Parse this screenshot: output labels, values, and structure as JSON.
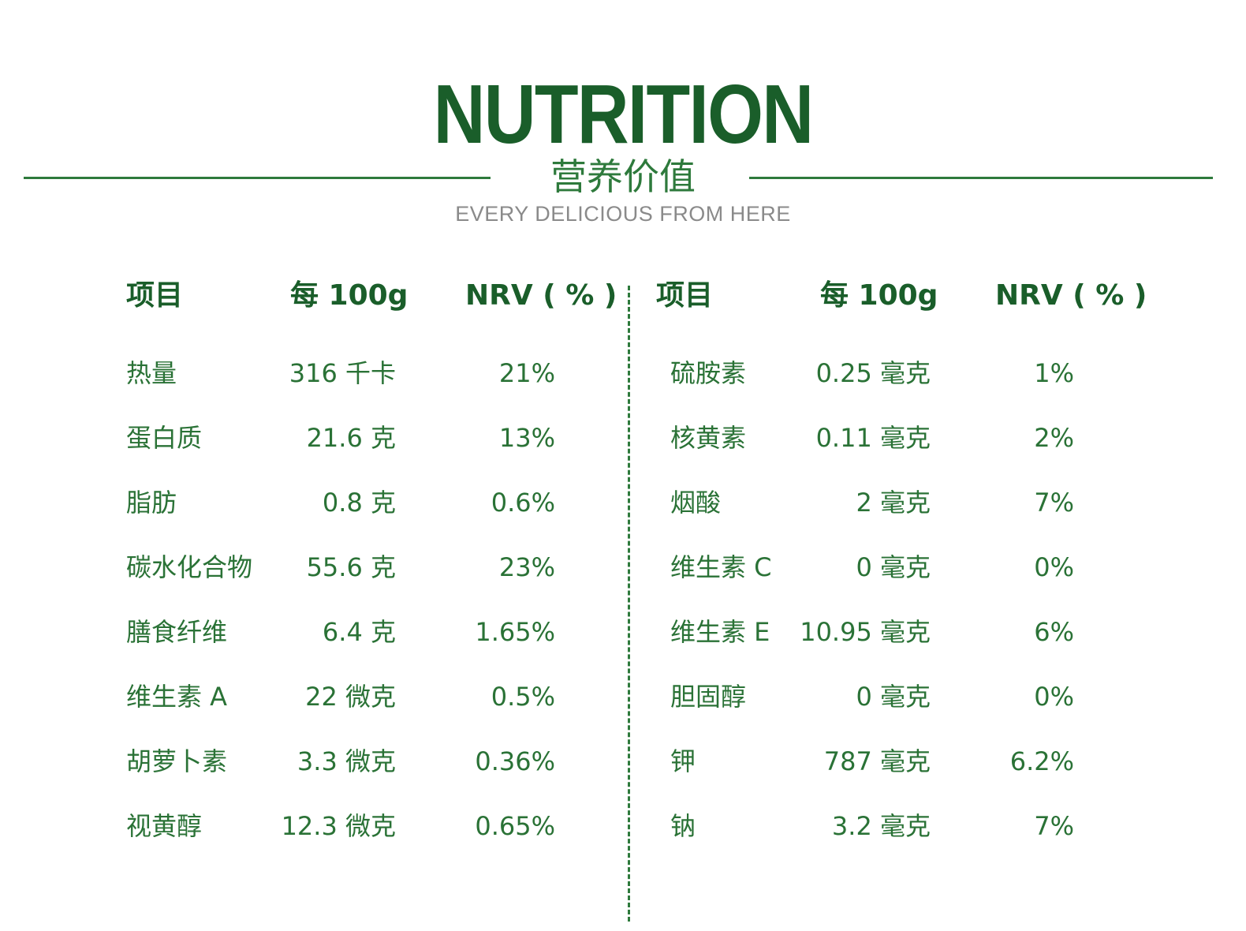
{
  "header": {
    "title_en": "NUTRITION",
    "title_cn": "营养价值",
    "tagline": "EVERY DELICIOUS FROM HERE"
  },
  "colors": {
    "primary_green": "#1a5e2a",
    "text_green": "#2a7236",
    "tagline_gray": "#8a8a8a"
  },
  "table": {
    "columns": [
      "项目",
      "每 100g",
      "NRV ( % )"
    ],
    "left": [
      {
        "item": "热量",
        "per100g": "316 千卡",
        "nrv": "21%"
      },
      {
        "item": "蛋白质",
        "per100g": "21.6 克",
        "nrv": "13%"
      },
      {
        "item": "脂肪",
        "per100g": "0.8 克",
        "nrv": "0.6%"
      },
      {
        "item": "碳水化合物",
        "per100g": "55.6 克",
        "nrv": "23%"
      },
      {
        "item": "膳食纤维",
        "per100g": "6.4 克",
        "nrv": "1.65%"
      },
      {
        "item": "维生素 A",
        "per100g": "22 微克",
        "nrv": "0.5%"
      },
      {
        "item": "胡萝卜素",
        "per100g": "3.3 微克",
        "nrv": "0.36%"
      },
      {
        "item": "视黄醇",
        "per100g": "12.3 微克",
        "nrv": "0.65%"
      }
    ],
    "right": [
      {
        "item": "硫胺素",
        "per100g": "0.25 毫克",
        "nrv": "1%"
      },
      {
        "item": "核黄素",
        "per100g": "0.11 毫克",
        "nrv": "2%"
      },
      {
        "item": "烟酸",
        "per100g": "2 毫克",
        "nrv": "7%"
      },
      {
        "item": "维生素 C",
        "per100g": "0 毫克",
        "nrv": "0%"
      },
      {
        "item": "维生素 E",
        "per100g": "10.95 毫克",
        "nrv": "6%"
      },
      {
        "item": "胆固醇",
        "per100g": "0 毫克",
        "nrv": "0%"
      },
      {
        "item": "钾",
        "per100g": "787 毫克",
        "nrv": "6.2%"
      },
      {
        "item": "钠",
        "per100g": "3.2 毫克",
        "nrv": "7%"
      }
    ]
  }
}
